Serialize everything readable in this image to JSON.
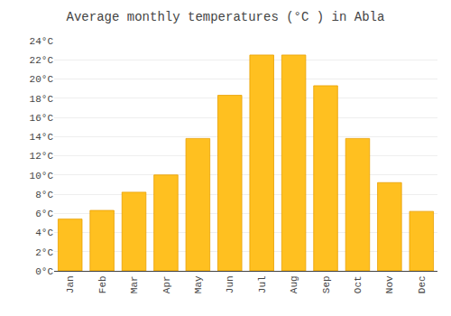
{
  "chart_data": {
    "type": "bar",
    "title": "Average monthly temperatures (°C ) in Abla",
    "categories": [
      "Jan",
      "Feb",
      "Mar",
      "Apr",
      "May",
      "Jun",
      "Jul",
      "Aug",
      "Sep",
      "Oct",
      "Nov",
      "Dec"
    ],
    "values": [
      5.4,
      6.3,
      8.2,
      10.0,
      13.8,
      18.3,
      22.5,
      22.5,
      19.3,
      13.8,
      9.2,
      6.2
    ],
    "color": "#FFC020",
    "ylim": [
      0,
      24
    ],
    "yticks": [
      {
        "value": 0,
        "label": "0°C"
      },
      {
        "value": 2,
        "label": "2°C"
      },
      {
        "value": 4,
        "label": "4°C"
      },
      {
        "value": 6,
        "label": "6°C"
      },
      {
        "value": 8,
        "label": "8°C"
      },
      {
        "value": 10,
        "label": "10°C"
      },
      {
        "value": 12,
        "label": "12°C"
      },
      {
        "value": 14,
        "label": "14°C"
      },
      {
        "value": 16,
        "label": "16°C"
      },
      {
        "value": 18,
        "label": "18°C"
      },
      {
        "value": 20,
        "label": "20°C"
      },
      {
        "value": 22,
        "label": "22°C"
      },
      {
        "value": 24,
        "label": "24°C"
      }
    ],
    "grid": true
  }
}
